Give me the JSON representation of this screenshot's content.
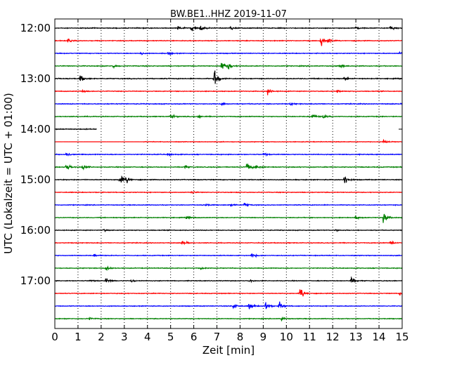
{
  "chart_data": {
    "type": "line",
    "title": "BW.BE1..HHZ 2019-11-07",
    "xlabel": "Zeit  [min]",
    "ylabel": "UTC (Lokalzeit = UTC + 01:00)",
    "xlim": [
      0,
      15
    ],
    "x_ticks": [
      0,
      1,
      2,
      3,
      4,
      5,
      6,
      7,
      8,
      9,
      10,
      11,
      12,
      13,
      14,
      15
    ],
    "y_tick_labels": [
      "12:00",
      "13:00",
      "14:00",
      "15:00",
      "16:00",
      "17:00"
    ],
    "trace_interval_minutes": 15,
    "grid": "vertical dotted at each minute",
    "colors": [
      "#000000",
      "#ff0000",
      "#0000ff",
      "#008000"
    ],
    "series": [
      {
        "start": "12:00",
        "color": "#000000",
        "noise": 0.45,
        "events": [
          [
            5.3,
            1.5
          ],
          [
            5.9,
            1.4
          ],
          [
            6.3,
            1.3
          ],
          [
            7.6,
            0.8
          ],
          [
            13.0,
            0.9
          ],
          [
            14.5,
            1.1
          ]
        ]
      },
      {
        "start": "12:15",
        "color": "#ff0000",
        "noise": 0.4,
        "events": [
          [
            0.55,
            0.8
          ],
          [
            11.5,
            2.2
          ],
          [
            11.8,
            1.0
          ]
        ]
      },
      {
        "start": "12:30",
        "color": "#0000ff",
        "noise": 0.4,
        "events": [
          [
            3.7,
            0.6
          ],
          [
            4.9,
            0.6
          ],
          [
            14.9,
            0.5
          ]
        ]
      },
      {
        "start": "12:45",
        "color": "#008000",
        "noise": 0.45,
        "events": [
          [
            2.5,
            0.8
          ],
          [
            7.2,
            2.0
          ],
          [
            7.5,
            1.3
          ],
          [
            12.3,
            0.6
          ]
        ]
      },
      {
        "start": "13:00",
        "color": "#000000",
        "noise": 0.5,
        "events": [
          [
            1.1,
            1.5
          ],
          [
            6.9,
            5.0
          ],
          [
            12.5,
            0.6
          ]
        ]
      },
      {
        "start": "13:15",
        "color": "#ff0000",
        "noise": 0.4,
        "events": [
          [
            1.2,
            0.6
          ],
          [
            9.2,
            1.5
          ],
          [
            12.2,
            0.6
          ]
        ]
      },
      {
        "start": "13:30",
        "color": "#0000ff",
        "noise": 0.45,
        "events": [
          [
            7.2,
            0.7
          ],
          [
            10.2,
            0.5
          ]
        ]
      },
      {
        "start": "13:45",
        "color": "#008000",
        "noise": 0.45,
        "events": [
          [
            5.0,
            1.2
          ],
          [
            6.2,
            0.6
          ],
          [
            11.1,
            1.3
          ],
          [
            11.6,
            1.0
          ]
        ]
      },
      {
        "start": "14:00",
        "color": "#000000",
        "noise": 0.5,
        "end": 1.8,
        "events": []
      },
      {
        "start": "14:15",
        "color": "#ff0000",
        "noise": 0.35,
        "flat_until": 3.8,
        "events": [
          [
            14.2,
            0.8
          ]
        ]
      },
      {
        "start": "14:30",
        "color": "#0000ff",
        "noise": 0.45,
        "events": [
          [
            0.5,
            0.8
          ],
          [
            4.9,
            0.5
          ],
          [
            9.0,
            0.6
          ]
        ]
      },
      {
        "start": "14:45",
        "color": "#008000",
        "noise": 0.45,
        "events": [
          [
            0.5,
            2.0
          ],
          [
            1.2,
            1.5
          ],
          [
            5.6,
            0.6
          ],
          [
            8.3,
            2.2
          ],
          [
            8.7,
            1.0
          ]
        ]
      },
      {
        "start": "15:00",
        "color": "#000000",
        "noise": 0.45,
        "events": [
          [
            2.8,
            2.2
          ],
          [
            3.1,
            1.2
          ],
          [
            12.5,
            2.5
          ]
        ]
      },
      {
        "start": "15:15",
        "color": "#ff0000",
        "noise": 0.4,
        "events": [
          [
            5.9,
            0.6
          ]
        ]
      },
      {
        "start": "15:30",
        "color": "#0000ff",
        "noise": 0.4,
        "events": [
          [
            6.5,
            0.5
          ],
          [
            7.6,
            0.8
          ],
          [
            8.2,
            1.0
          ]
        ]
      },
      {
        "start": "15:45",
        "color": "#008000",
        "noise": 0.4,
        "events": [
          [
            5.7,
            0.6
          ],
          [
            13.0,
            0.7
          ],
          [
            14.2,
            2.6
          ]
        ]
      },
      {
        "start": "16:00",
        "color": "#000000",
        "noise": 0.4,
        "events": [
          [
            2.1,
            0.5
          ],
          [
            12.1,
            0.5
          ]
        ]
      },
      {
        "start": "16:15",
        "color": "#ff0000",
        "noise": 0.4,
        "events": [
          [
            5.5,
            0.9
          ],
          [
            14.5,
            0.8
          ]
        ]
      },
      {
        "start": "16:30",
        "color": "#0000ff",
        "noise": 0.4,
        "events": [
          [
            1.7,
            0.5
          ],
          [
            8.5,
            1.3
          ]
        ]
      },
      {
        "start": "16:45",
        "color": "#008000",
        "noise": 0.4,
        "events": [
          [
            2.2,
            1.6
          ],
          [
            6.3,
            0.8
          ]
        ]
      },
      {
        "start": "17:00",
        "color": "#000000",
        "noise": 0.4,
        "events": [
          [
            1.5,
            0.5
          ],
          [
            2.2,
            1.3
          ],
          [
            3.3,
            0.6
          ],
          [
            8.4,
            0.6
          ],
          [
            12.8,
            1.8
          ]
        ]
      },
      {
        "start": "17:15",
        "color": "#ff0000",
        "noise": 0.4,
        "events": [
          [
            10.6,
            2.6
          ],
          [
            14.9,
            0.6
          ]
        ]
      },
      {
        "start": "17:30",
        "color": "#0000ff",
        "noise": 0.4,
        "events": [
          [
            7.7,
            1.4
          ],
          [
            8.4,
            1.6
          ],
          [
            9.1,
            1.8
          ],
          [
            9.7,
            1.6
          ]
        ]
      },
      {
        "start": "17:45",
        "color": "#008000",
        "noise": 0.4,
        "events": [
          [
            1.5,
            0.5
          ],
          [
            9.8,
            0.8
          ]
        ]
      }
    ]
  }
}
